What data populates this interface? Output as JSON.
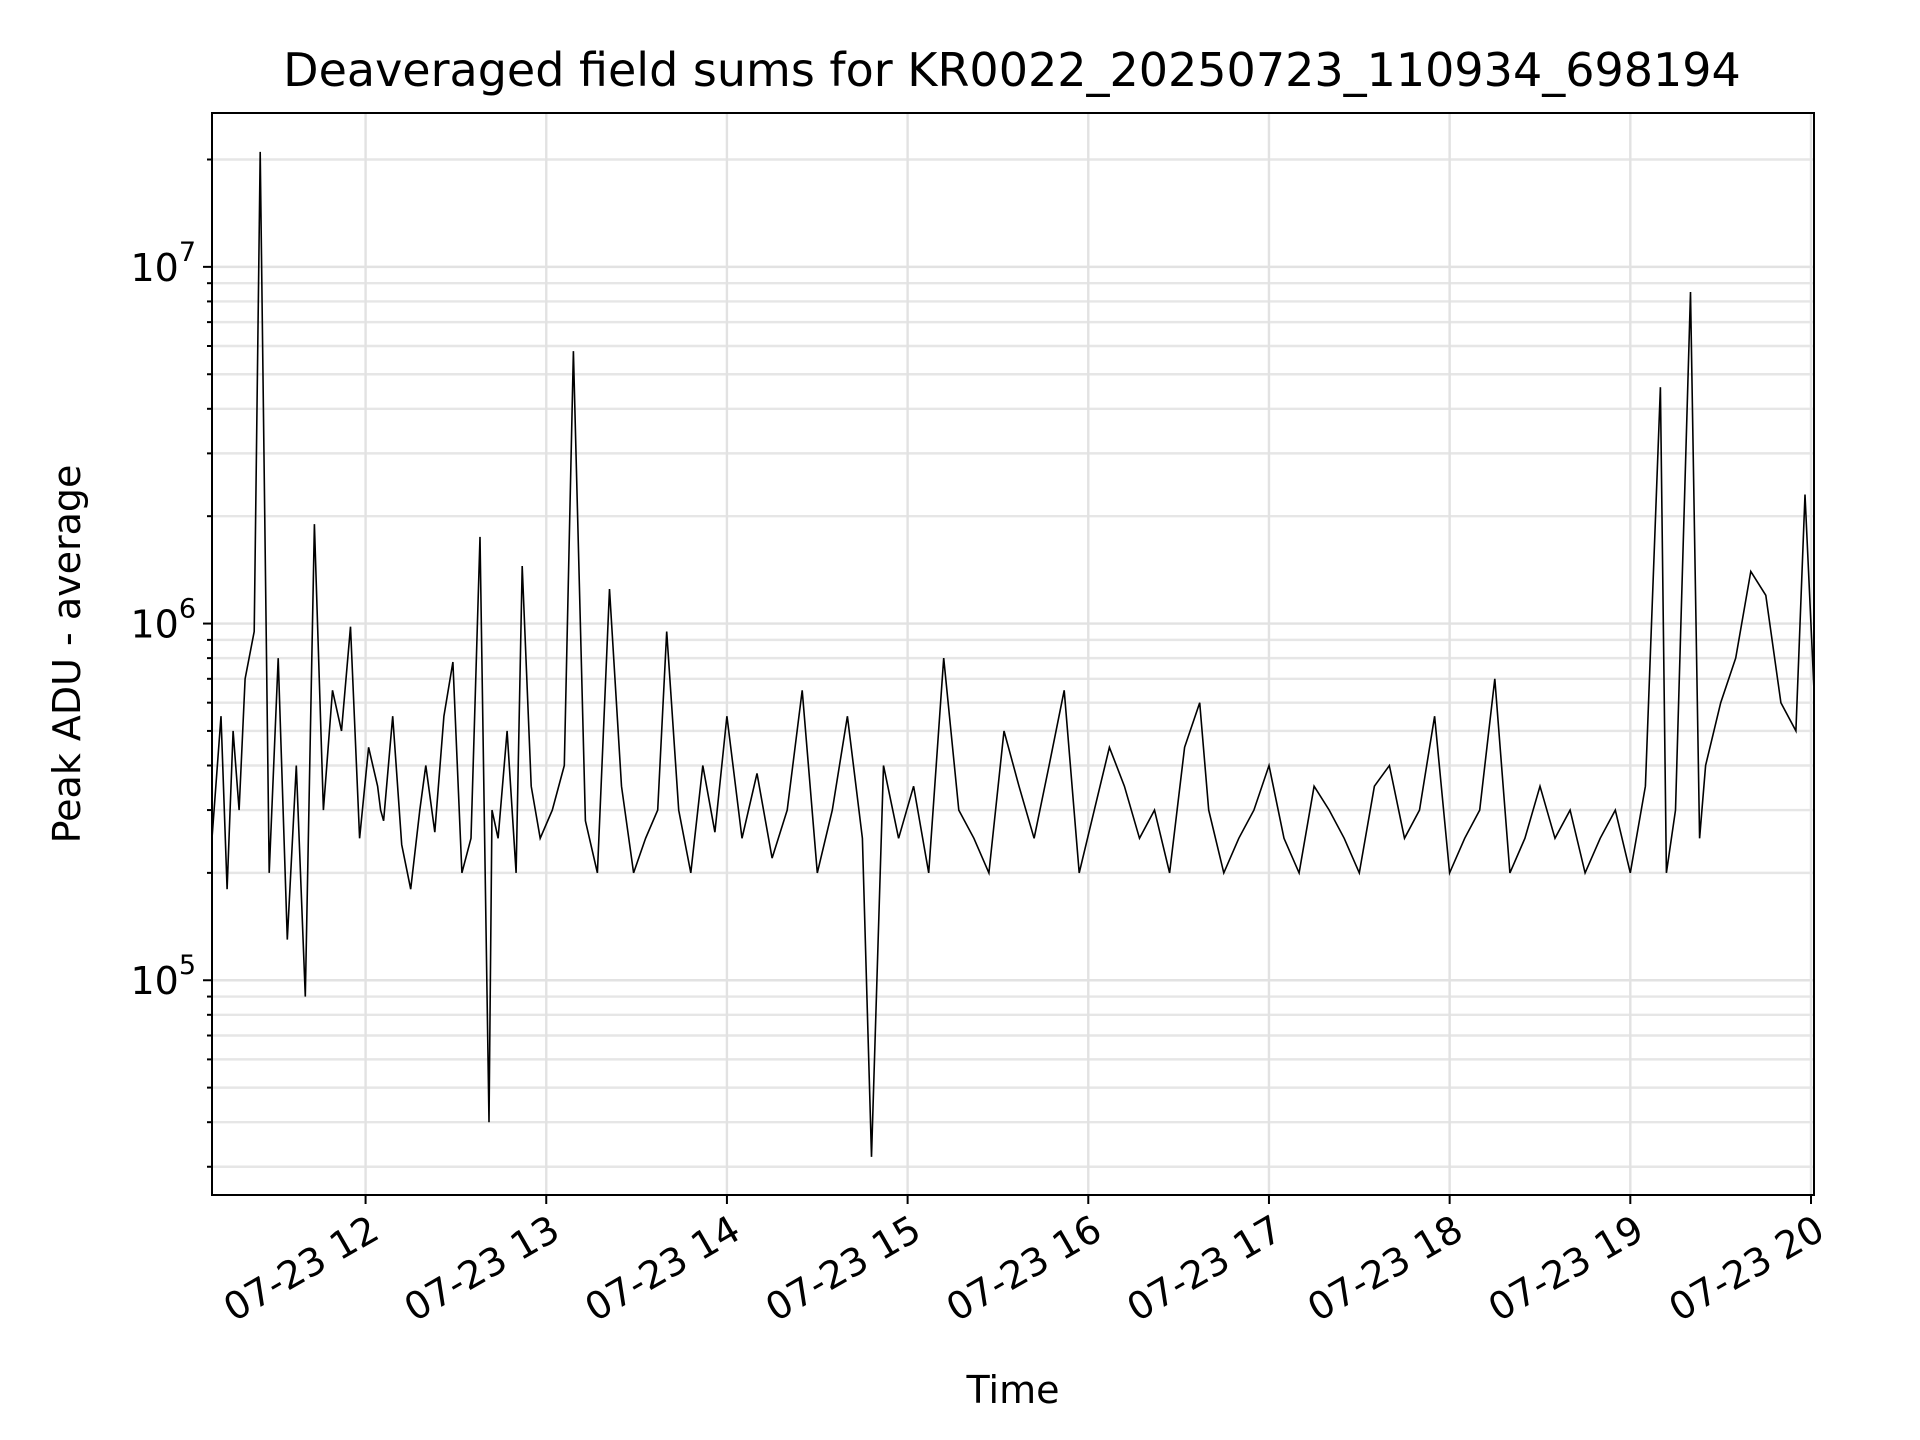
{
  "chart_data": {
    "type": "line",
    "title": "Deaveraged field sums for KR0022_20250723_110934_698194",
    "xlabel": "Time",
    "ylabel": "Peak ADU - average",
    "yscale": "log",
    "grid": true,
    "xlim": [
      "07-23 11:09",
      "07-23 20:01"
    ],
    "ylim": [
      25000,
      27000000
    ],
    "x_ticks": [
      "07-23 12",
      "07-23 13",
      "07-23 14",
      "07-23 15",
      "07-23 16",
      "07-23 17",
      "07-23 18",
      "07-23 19",
      "07-23 20"
    ],
    "y_ticks": [
      {
        "base": "10",
        "exp": "5",
        "value": 100000
      },
      {
        "base": "10",
        "exp": "6",
        "value": 1000000
      },
      {
        "base": "10",
        "exp": "7",
        "value": 10000000
      }
    ],
    "line_color": "#000000",
    "series": [
      {
        "note_points": "baseline noise plus peaks",
        "x": [
          "07-23 11:09",
          "07-23 11:12",
          "07-23 11:14",
          "07-23 11:16",
          "07-23 11:18",
          "07-23 11:20",
          "07-23 11:23",
          "07-23 11:25",
          "07-23 11:28",
          "07-23 11:31",
          "07-23 11:34",
          "07-23 11:37",
          "07-23 11:40",
          "07-23 11:43",
          "07-23 11:46",
          "07-23 11:49",
          "07-23 11:52",
          "07-23 11:55",
          "07-23 11:58",
          "07-23 12:01",
          "07-23 12:04",
          "07-23 12:05",
          "07-23 12:06",
          "07-23 12:09",
          "07-23 12:12",
          "07-23 12:15",
          "07-23 12:18",
          "07-23 12:20",
          "07-23 12:23",
          "07-23 12:26",
          "07-23 12:29",
          "07-23 12:32",
          "07-23 12:35",
          "07-23 12:38",
          "07-23 12:41",
          "07-23 12:42",
          "07-23 12:44",
          "07-23 12:47",
          "07-23 12:50",
          "07-23 12:52",
          "07-23 12:55",
          "07-23 12:58",
          "07-23 13:02",
          "07-23 13:06",
          "07-23 13:09",
          "07-23 13:13",
          "07-23 13:17",
          "07-23 13:21",
          "07-23 13:25",
          "07-23 13:29",
          "07-23 13:33",
          "07-23 13:37",
          "07-23 13:40",
          "07-23 13:44",
          "07-23 13:48",
          "07-23 13:52",
          "07-23 13:56",
          "07-23 14:00",
          "07-23 14:05",
          "07-23 14:10",
          "07-23 14:15",
          "07-23 14:20",
          "07-23 14:25",
          "07-23 14:30",
          "07-23 14:35",
          "07-23 14:40",
          "07-23 14:45",
          "07-23 14:48",
          "07-23 14:52",
          "07-23 14:57",
          "07-23 15:02",
          "07-23 15:07",
          "07-23 15:12",
          "07-23 15:17",
          "07-23 15:22",
          "07-23 15:27",
          "07-23 15:32",
          "07-23 15:37",
          "07-23 15:42",
          "07-23 15:47",
          "07-23 15:52",
          "07-23 15:57",
          "07-23 16:02",
          "07-23 16:07",
          "07-23 16:12",
          "07-23 16:17",
          "07-23 16:22",
          "07-23 16:27",
          "07-23 16:32",
          "07-23 16:37",
          "07-23 16:40",
          "07-23 16:45",
          "07-23 16:50",
          "07-23 16:55",
          "07-23 17:00",
          "07-23 17:05",
          "07-23 17:10",
          "07-23 17:15",
          "07-23 17:20",
          "07-23 17:25",
          "07-23 17:30",
          "07-23 17:35",
          "07-23 17:40",
          "07-23 17:45",
          "07-23 17:50",
          "07-23 17:55",
          "07-23 18:00",
          "07-23 18:05",
          "07-23 18:10",
          "07-23 18:15",
          "07-23 18:20",
          "07-23 18:25",
          "07-23 18:30",
          "07-23 18:35",
          "07-23 18:40",
          "07-23 18:45",
          "07-23 18:50",
          "07-23 18:55",
          "07-23 19:00",
          "07-23 19:05",
          "07-23 19:10",
          "07-23 19:12",
          "07-23 19:15",
          "07-23 19:20",
          "07-23 19:23",
          "07-23 19:25",
          "07-23 19:30",
          "07-23 19:35",
          "07-23 19:40",
          "07-23 19:45",
          "07-23 19:50",
          "07-23 19:55",
          "07-23 19:58",
          "07-23 20:01"
        ],
        "values": [
          250000,
          550000,
          180000,
          500000,
          300000,
          700000,
          950000,
          21000000,
          200000,
          800000,
          130000,
          400000,
          90000,
          1900000,
          300000,
          650000,
          500000,
          980000,
          250000,
          450000,
          350000,
          300000,
          280000,
          550000,
          240000,
          180000,
          300000,
          400000,
          260000,
          550000,
          780000,
          200000,
          250000,
          1750000,
          40000,
          300000,
          250000,
          500000,
          200000,
          1450000,
          350000,
          250000,
          300000,
          400000,
          5800000,
          280000,
          200000,
          1250000,
          350000,
          200000,
          250000,
          300000,
          950000,
          300000,
          200000,
          400000,
          260000,
          550000,
          250000,
          380000,
          220000,
          300000,
          650000,
          200000,
          300000,
          550000,
          250000,
          32000,
          400000,
          250000,
          350000,
          200000,
          800000,
          300000,
          250000,
          200000,
          500000,
          350000,
          250000,
          400000,
          650000,
          200000,
          300000,
          450000,
          350000,
          250000,
          300000,
          200000,
          450000,
          600000,
          300000,
          200000,
          250000,
          300000,
          400000,
          250000,
          200000,
          350000,
          300000,
          250000,
          200000,
          350000,
          400000,
          250000,
          300000,
          550000,
          200000,
          250000,
          300000,
          700000,
          200000,
          250000,
          350000,
          250000,
          300000,
          200000,
          250000,
          300000,
          200000,
          350000,
          4600000,
          200000,
          300000,
          8500000,
          250000,
          400000,
          600000,
          800000,
          1400000,
          1200000,
          600000,
          500000,
          2300000,
          650000
        ]
      }
    ]
  }
}
